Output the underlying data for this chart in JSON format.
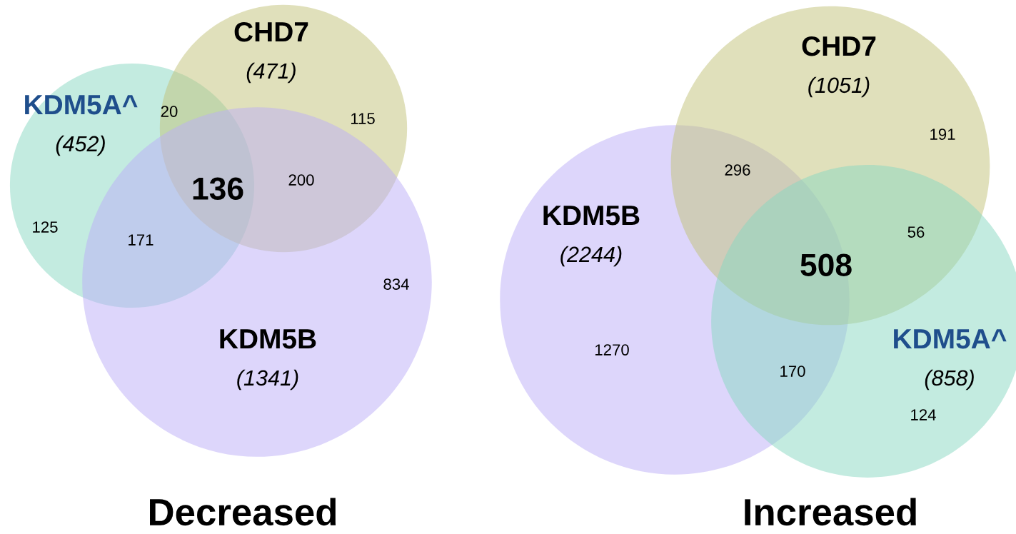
{
  "chart_data": [
    {
      "type": "other",
      "title": "Decreased",
      "categories": [
        "KDM5A^",
        "CHD7",
        "KDM5B"
      ],
      "values": [
        452,
        471,
        1341
      ],
      "value_labels": [
        "(452)",
        "(471)",
        "(1341)"
      ],
      "colors": [
        "#88d7c2",
        "#c1c177",
        "#bbadf7"
      ],
      "annotations": [
        "20",
        "115",
        "136",
        "200",
        "125",
        "171",
        "834"
      ]
    },
    {
      "type": "other",
      "title": "Increased",
      "categories": [
        "KDM5B",
        "CHD7",
        "KDM5A^"
      ],
      "values": [
        2244,
        1051,
        858
      ],
      "value_labels": [
        "(2244)",
        "(1051)",
        "(858)"
      ],
      "colors": [
        "#bbadf7",
        "#c1c177",
        "#88d7c2"
      ],
      "annotations": [
        "191",
        "296",
        "508",
        "56",
        "1270",
        "170",
        "124"
      ]
    }
  ]
}
